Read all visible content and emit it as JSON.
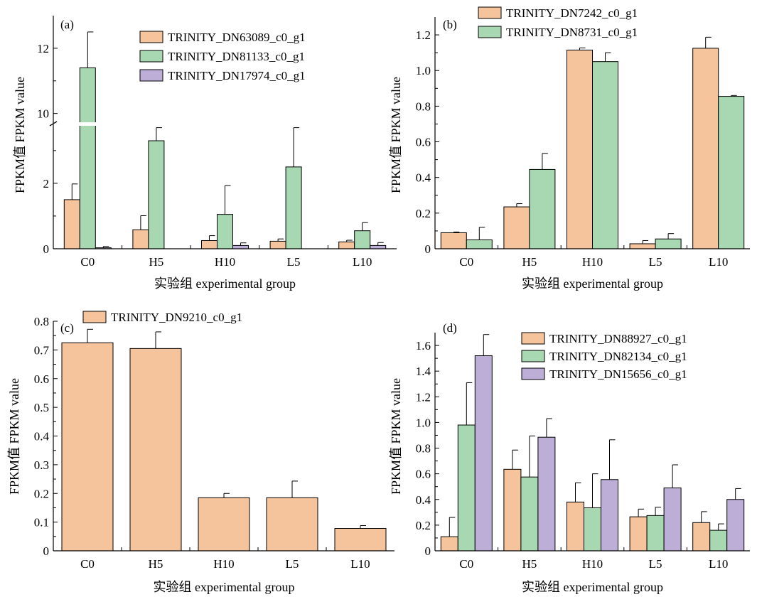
{
  "colors": {
    "orange": "#f5c39c",
    "green": "#a7d8b1",
    "purple": "#bcaed6",
    "axis": "#000000"
  },
  "chart_data": [
    {
      "panel": "(a)",
      "type": "bar",
      "xlabel": "实验组 experimental group",
      "ylabel": "FPKM值 FPKM value",
      "categories": [
        "C0",
        "H5",
        "H10",
        "L5",
        "L10"
      ],
      "broken_axis": true,
      "lower_ylim": [
        0,
        3.8
      ],
      "upper_ylim": [
        9.6,
        13.0
      ],
      "yticks": [
        "0",
        "2",
        "10",
        "12"
      ],
      "series": [
        {
          "name": "TRINITY_DN63089_c0_g1",
          "color": "orange",
          "values": [
            1.5,
            0.58,
            0.25,
            0.23,
            0.21
          ],
          "errors": [
            0.48,
            0.43,
            0.15,
            0.07,
            0.05
          ]
        },
        {
          "name": "TRINITY_DN81133_c0_g1",
          "color": "green",
          "values": [
            11.4,
            3.3,
            1.05,
            2.5,
            0.55
          ],
          "errors": [
            1.1,
            0.4,
            0.88,
            1.2,
            0.25
          ]
        },
        {
          "name": "TRINITY_DN17974_c0_g1",
          "color": "purple",
          "values": [
            0.03,
            0.0,
            0.1,
            0.0,
            0.1
          ],
          "errors": [
            0.04,
            0.0,
            0.08,
            0.0,
            0.09
          ]
        }
      ]
    },
    {
      "panel": "(b)",
      "type": "bar",
      "xlabel": "实验组 experimental group",
      "ylabel": "FPKM值 FPKM value",
      "categories": [
        "C0",
        "H5",
        "H10",
        "L5",
        "L10"
      ],
      "ylim": [
        0,
        1.3
      ],
      "yticks": [
        "0",
        "0.2",
        "0.4",
        "0.6",
        "0.8",
        "1.0",
        "1.2"
      ],
      "series": [
        {
          "name": "TRINITY_DN7242_c0_g1",
          "color": "orange",
          "values": [
            0.09,
            0.235,
            1.115,
            0.028,
            1.125
          ],
          "errors": [
            0.004,
            0.018,
            0.012,
            0.018,
            0.062
          ]
        },
        {
          "name": "TRINITY_DN8731_c0_g1",
          "color": "green",
          "values": [
            0.05,
            0.445,
            1.05,
            0.055,
            0.855
          ],
          "errors": [
            0.07,
            0.09,
            0.05,
            0.03,
            0.005
          ]
        }
      ]
    },
    {
      "panel": "(c)",
      "type": "bar",
      "xlabel": "实验组 experimental group",
      "ylabel": "FPKM值 FPKM value",
      "categories": [
        "C0",
        "H5",
        "H10",
        "L5",
        "L10"
      ],
      "ylim": [
        0,
        0.8
      ],
      "yticks": [
        "0",
        "0.1",
        "0.2",
        "0.3",
        "0.4",
        "0.5",
        "0.6",
        "0.7",
        "0.8"
      ],
      "series": [
        {
          "name": "TRINITY_DN9210_c0_g1",
          "color": "orange",
          "values": [
            0.725,
            0.705,
            0.185,
            0.185,
            0.078
          ],
          "errors": [
            0.047,
            0.058,
            0.015,
            0.058,
            0.01
          ]
        }
      ]
    },
    {
      "panel": "(d)",
      "type": "bar",
      "xlabel": "实验组 experimental group",
      "ylabel": "FPKM值 FPKM value",
      "categories": [
        "C0",
        "H5",
        "H10",
        "L5",
        "L10"
      ],
      "ylim": [
        0,
        1.7
      ],
      "yticks": [
        "0",
        "0.2",
        "0.4",
        "0.6",
        "0.8",
        "1.0",
        "1.2",
        "1.4",
        "1.6"
      ],
      "series": [
        {
          "name": "TRINITY_DN88927_c0_g1",
          "color": "orange",
          "values": [
            0.11,
            0.635,
            0.38,
            0.265,
            0.22
          ],
          "errors": [
            0.15,
            0.15,
            0.15,
            0.06,
            0.085
          ]
        },
        {
          "name": "TRINITY_DN82134_c0_g1",
          "color": "green",
          "values": [
            0.98,
            0.575,
            0.335,
            0.275,
            0.16
          ],
          "errors": [
            0.33,
            0.32,
            0.265,
            0.065,
            0.05
          ]
        },
        {
          "name": "TRINITY_DN15656_c0_g1",
          "color": "purple",
          "values": [
            1.52,
            0.885,
            0.555,
            0.49,
            0.4
          ],
          "errors": [
            0.165,
            0.145,
            0.31,
            0.18,
            0.085
          ]
        }
      ]
    }
  ]
}
